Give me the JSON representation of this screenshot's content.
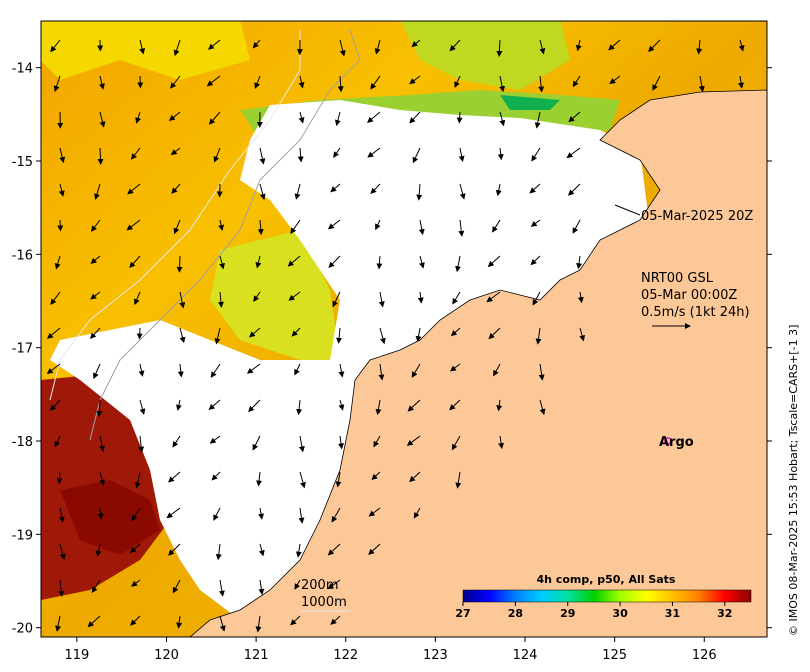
{
  "map": {
    "x_ticks": [
      "119",
      "120",
      "121",
      "122",
      "123",
      "124",
      "125",
      "126"
    ],
    "y_ticks": [
      "-14",
      "-15",
      "-16",
      "-17",
      "-18",
      "-19",
      "-20"
    ],
    "lon_range": [
      118.6,
      126.7
    ],
    "lat_range": [
      -20.1,
      -13.5
    ]
  },
  "annotations": {
    "timestamp_line": "05-Mar-2025 20Z",
    "current_product": "NRT00 GSL",
    "current_time": "05-Mar 00:00Z",
    "current_scale": "0.5m/s (1kt 24h)",
    "argo_label": "Argo",
    "isobath_200": "200m",
    "isobath_1000": "1000m"
  },
  "colorbar": {
    "title": "4h comp, p50, All Sats",
    "ticks": [
      "27",
      "28",
      "29",
      "30",
      "31",
      "32"
    ],
    "range": [
      27,
      32.5
    ],
    "stops": [
      "#00008b",
      "#0000ff",
      "#0080ff",
      "#00ccff",
      "#00e0a0",
      "#00d000",
      "#a0ff00",
      "#ffff00",
      "#ffc000",
      "#ff8000",
      "#ff0000",
      "#8b0000"
    ]
  },
  "credit": "© IMOS 08-Mar-2025 15:53 Hobart; Tscale=CARS+[-1 3]",
  "colors": {
    "land": "#fcc898",
    "no_data": "#ffffff",
    "argo_marker": "#ff00ff"
  }
}
